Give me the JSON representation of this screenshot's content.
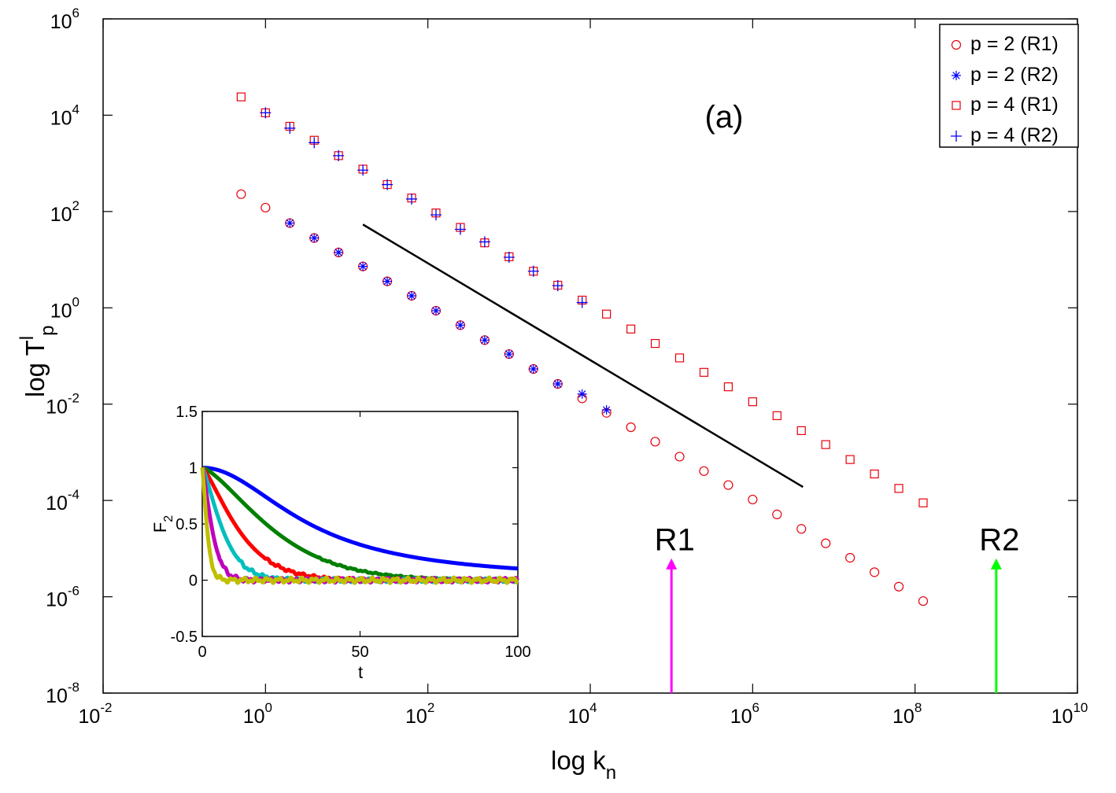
{
  "chart_data": {
    "main": {
      "type": "scatter",
      "title": "",
      "panel_label": "(a)",
      "xlabel": {
        "base": "log k",
        "sub": "n"
      },
      "ylabel": {
        "base": "log T",
        "sup": "l",
        "sub": "p"
      },
      "xscale": "log",
      "yscale": "log",
      "x_exp_range": [
        -2,
        10
      ],
      "y_exp_range": [
        -8,
        6
      ],
      "x_ticks": [
        {
          "base": "10",
          "exp": "-2"
        },
        {
          "base": "10",
          "exp": "0"
        },
        {
          "base": "10",
          "exp": "2"
        },
        {
          "base": "10",
          "exp": "4"
        },
        {
          "base": "10",
          "exp": "6"
        },
        {
          "base": "10",
          "exp": "8"
        },
        {
          "base": "10",
          "exp": "10"
        }
      ],
      "y_ticks": [
        {
          "base": "10",
          "exp": "-8"
        },
        {
          "base": "10",
          "exp": "-6"
        },
        {
          "base": "10",
          "exp": "-4"
        },
        {
          "base": "10",
          "exp": "-2"
        },
        {
          "base": "10",
          "exp": "0"
        },
        {
          "base": "10",
          "exp": "2"
        },
        {
          "base": "10",
          "exp": "4"
        },
        {
          "base": "10",
          "exp": "6"
        }
      ],
      "legend_position": "top-right",
      "series": [
        {
          "name": "p = 2 (R1)",
          "marker": "circle",
          "color": "#e8000b",
          "log_x": [
            -0.3,
            0.0,
            0.3,
            0.6,
            0.9,
            1.2,
            1.5,
            1.8,
            2.1,
            2.4,
            2.7,
            3.0,
            3.3,
            3.6,
            3.9,
            4.2,
            4.5,
            4.8,
            5.1,
            5.4,
            5.7,
            6.0,
            6.3,
            6.6,
            6.9,
            7.2,
            7.5,
            7.8,
            8.1
          ],
          "log_y": [
            2.36,
            2.08,
            1.76,
            1.45,
            1.15,
            0.86,
            0.55,
            0.25,
            -0.06,
            -0.36,
            -0.67,
            -0.96,
            -1.27,
            -1.58,
            -1.88,
            -2.18,
            -2.48,
            -2.78,
            -3.09,
            -3.39,
            -3.68,
            -3.98,
            -4.29,
            -4.59,
            -4.89,
            -5.19,
            -5.49,
            -5.79,
            -6.09
          ]
        },
        {
          "name": "p = 2 (R2)",
          "marker": "asterisk",
          "color": "#0000ff",
          "log_x": [
            0.3,
            0.6,
            0.9,
            1.2,
            1.5,
            1.8,
            2.1,
            2.4,
            2.7,
            3.0,
            3.3,
            3.6,
            3.9,
            4.2
          ],
          "log_y": [
            1.76,
            1.45,
            1.15,
            0.86,
            0.55,
            0.25,
            -0.06,
            -0.36,
            -0.67,
            -0.96,
            -1.27,
            -1.58,
            -1.79,
            -2.12
          ]
        },
        {
          "name": "p = 4 (R1)",
          "marker": "square",
          "color": "#e8000b",
          "log_x": [
            -0.3,
            0.0,
            0.3,
            0.6,
            0.9,
            1.2,
            1.5,
            1.8,
            2.1,
            2.4,
            2.7,
            3.0,
            3.3,
            3.6,
            3.9,
            4.2,
            4.5,
            4.8,
            5.1,
            5.4,
            5.7,
            6.0,
            6.3,
            6.6,
            6.9,
            7.2,
            7.5,
            7.8,
            8.1
          ],
          "log_y": [
            4.38,
            4.05,
            3.77,
            3.48,
            3.16,
            2.88,
            2.56,
            2.28,
            1.97,
            1.67,
            1.35,
            1.06,
            0.76,
            0.47,
            0.16,
            -0.13,
            -0.44,
            -0.74,
            -1.04,
            -1.34,
            -1.64,
            -1.95,
            -2.24,
            -2.55,
            -2.84,
            -3.15,
            -3.45,
            -3.75,
            -4.05
          ]
        },
        {
          "name": "p = 4 (R2)",
          "marker": "plus",
          "color": "#0000ff",
          "log_x": [
            0.0,
            0.3,
            0.6,
            0.9,
            1.2,
            1.5,
            1.8,
            2.1,
            2.4,
            2.7,
            3.0,
            3.3,
            3.6,
            3.9
          ],
          "log_y": [
            4.05,
            3.73,
            3.43,
            3.16,
            2.86,
            2.56,
            2.26,
            1.93,
            1.63,
            1.37,
            1.05,
            0.76,
            0.46,
            0.11
          ]
        }
      ],
      "reference_line": {
        "color": "#000000",
        "log_x": [
          1.2,
          6.62
        ],
        "log_y": [
          1.73,
          -3.72
        ]
      },
      "annotations": [
        {
          "text": "R1",
          "log_x": 5.0,
          "arrow_log_y_top": -5.3,
          "arrow_color": "#ff00ff"
        },
        {
          "text": "R2",
          "log_x": 9.0,
          "arrow_log_y_top": -5.3,
          "arrow_color": "#00ff00"
        }
      ]
    },
    "inset": {
      "type": "line",
      "xlabel": "t",
      "ylabel": {
        "base": "F",
        "sub": "2"
      },
      "xlim": [
        0,
        100
      ],
      "ylim": [
        -0.5,
        1.5
      ],
      "x_ticks": [
        "0",
        "50",
        "100"
      ],
      "y_ticks": [
        "-0.5",
        "0",
        "0.5",
        "1",
        "1.5"
      ],
      "series": [
        {
          "name": "blue",
          "color": "#0000ff",
          "decay_time": 34,
          "shape": 2.0,
          "noise": 0.0
        },
        {
          "name": "green",
          "color": "#007f00",
          "decay_time": 16,
          "shape": 1.4,
          "noise": 0.004
        },
        {
          "name": "red",
          "color": "#ff0000",
          "decay_time": 8,
          "shape": 1.3,
          "noise": 0.008
        },
        {
          "name": "cyan",
          "color": "#00bfbf",
          "decay_time": 4.5,
          "shape": 1.3,
          "noise": 0.01
        },
        {
          "name": "magenta",
          "color": "#bf00bf",
          "decay_time": 2.2,
          "shape": 1.3,
          "noise": 0.012
        },
        {
          "name": "olive",
          "color": "#bfbf00",
          "decay_time": 1.1,
          "shape": 1.3,
          "noise": 0.014
        }
      ]
    }
  }
}
